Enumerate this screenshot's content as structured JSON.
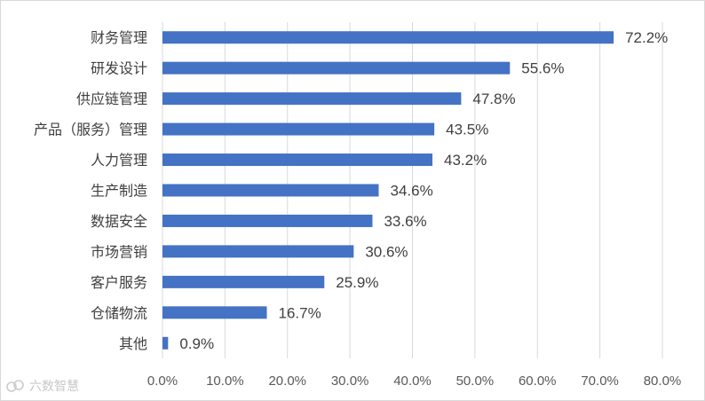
{
  "chart_data": {
    "type": "bar",
    "orientation": "horizontal",
    "categories": [
      "财务管理",
      "研发设计",
      "供应链管理",
      "产品（服务）管理",
      "人力管理",
      "生产制造",
      "数据安全",
      "市场营销",
      "客户服务",
      "仓储物流",
      "其他"
    ],
    "values": [
      72.2,
      55.6,
      47.8,
      43.5,
      43.2,
      34.6,
      33.6,
      30.6,
      25.9,
      16.7,
      0.9
    ],
    "value_labels": [
      "72.2%",
      "55.6%",
      "47.8%",
      "43.5%",
      "43.2%",
      "34.6%",
      "33.6%",
      "30.6%",
      "25.9%",
      "16.7%",
      "0.9%"
    ],
    "x_ticks": [
      "0.0%",
      "10.0%",
      "20.0%",
      "30.0%",
      "40.0%",
      "50.0%",
      "60.0%",
      "70.0%",
      "80.0%"
    ],
    "xlim": [
      0,
      80
    ],
    "grid": "vertical",
    "legend": "none",
    "bar_color": "#4472c4",
    "grid_color": "#d9d9d9"
  },
  "watermark": {
    "text": "六数智慧"
  }
}
